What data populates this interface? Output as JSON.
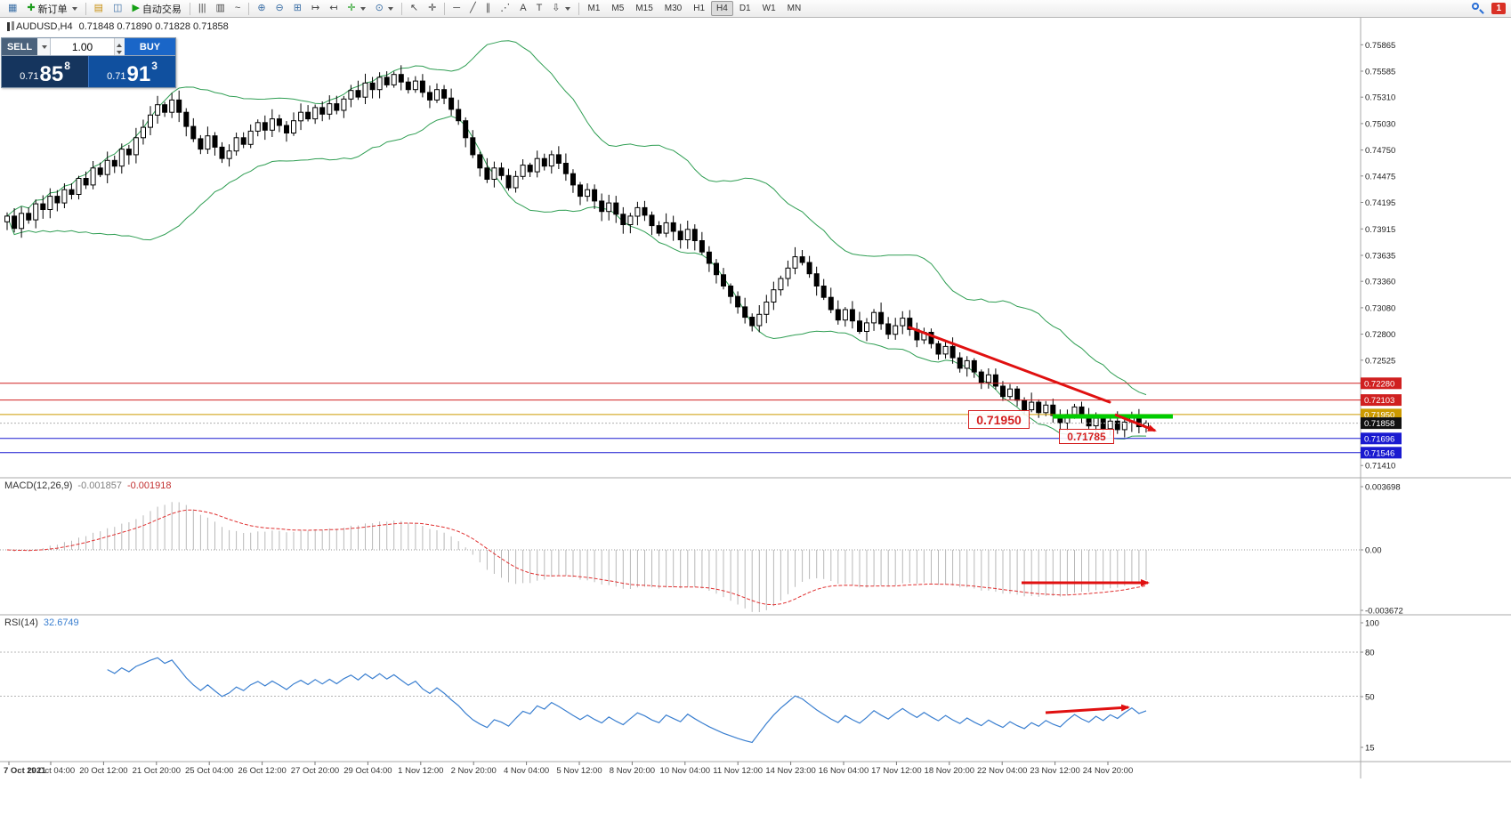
{
  "toolbar": {
    "items": [
      {
        "t": "btn",
        "name": "new-chart-button",
        "glyph": "▦",
        "color": "#3a6ea5"
      },
      {
        "t": "btn",
        "name": "new-order-button",
        "glyph": "✚",
        "color": "#1f9d1f",
        "label": "新订单",
        "caret": true
      },
      {
        "t": "sep"
      },
      {
        "t": "btn",
        "name": "profiles-button",
        "glyph": "▤",
        "color": "#c89010"
      },
      {
        "t": "btn",
        "name": "charts-grid-button",
        "glyph": "◫",
        "color": "#3a6ea5"
      },
      {
        "t": "btn",
        "name": "autotrade-button",
        "glyph": "▶",
        "color": "#14a014",
        "label": "自动交易"
      },
      {
        "t": "sep"
      },
      {
        "t": "btn",
        "name": "bar-chart-button",
        "glyph": "|||",
        "color": "#444"
      },
      {
        "t": "btn",
        "name": "candlestick-chart-button",
        "glyph": "▥",
        "color": "#444"
      },
      {
        "t": "btn",
        "name": "line-chart-button",
        "glyph": "~",
        "color": "#444"
      },
      {
        "t": "sep"
      },
      {
        "t": "btn",
        "name": "zoom-in-button",
        "glyph": "⊕",
        "color": "#3a6ea5"
      },
      {
        "t": "btn",
        "name": "zoom-out-button",
        "glyph": "⊖",
        "color": "#3a6ea5"
      },
      {
        "t": "btn",
        "name": "tile-windows-button",
        "glyph": "⊞",
        "color": "#3a6ea5"
      },
      {
        "t": "btn",
        "name": "auto-scroll-button",
        "glyph": "↦",
        "color": "#444"
      },
      {
        "t": "btn",
        "name": "chart-shift-button",
        "glyph": "↤",
        "color": "#444"
      },
      {
        "t": "btn",
        "name": "indicators-button",
        "glyph": "✛",
        "color": "#1f9d1f",
        "caret": true
      },
      {
        "t": "btn",
        "name": "periods-button",
        "glyph": "⊙",
        "color": "#3a6ea5",
        "caret": true
      },
      {
        "t": "sep"
      },
      {
        "t": "btn",
        "name": "cursor-button",
        "glyph": "↖",
        "color": "#444"
      },
      {
        "t": "btn",
        "name": "crosshair-button",
        "glyph": "✛",
        "color": "#444"
      },
      {
        "t": "sep"
      },
      {
        "t": "btn",
        "name": "horizontal-line-button",
        "glyph": "─",
        "color": "#444"
      },
      {
        "t": "btn",
        "name": "trendline-button",
        "glyph": "╱",
        "color": "#444"
      },
      {
        "t": "btn",
        "name": "equidistant-channel-button",
        "glyph": "∥",
        "color": "#444"
      },
      {
        "t": "btn",
        "name": "fibonacci-button",
        "glyph": "⋰",
        "color": "#444"
      },
      {
        "t": "btn",
        "name": "text-button",
        "glyph": "A",
        "color": "#444"
      },
      {
        "t": "btn",
        "name": "text-label-button",
        "glyph": "T",
        "color": "#444"
      },
      {
        "t": "btn",
        "name": "arrows-button",
        "glyph": "⇩",
        "color": "#444",
        "caret": true
      },
      {
        "t": "sep"
      },
      {
        "t": "tf",
        "name": "timeframe-m1",
        "label": "M1"
      },
      {
        "t": "tf",
        "name": "timeframe-m5",
        "label": "M5"
      },
      {
        "t": "tf",
        "name": "timeframe-m15",
        "label": "M15"
      },
      {
        "t": "tf",
        "name": "timeframe-m30",
        "label": "M30"
      },
      {
        "t": "tf",
        "name": "timeframe-h1",
        "label": "H1"
      },
      {
        "t": "tf",
        "name": "timeframe-h4",
        "label": "H4",
        "active": true
      },
      {
        "t": "tf",
        "name": "timeframe-d1",
        "label": "D1"
      },
      {
        "t": "tf",
        "name": "timeframe-w1",
        "label": "W1"
      },
      {
        "t": "tf",
        "name": "timeframe-mn",
        "label": "MN"
      },
      {
        "t": "spacer"
      },
      {
        "t": "search"
      },
      {
        "t": "badge",
        "name": "notification-badge",
        "label": "1"
      }
    ]
  },
  "symbol_header": {
    "symbol": "AUDUSD,H4",
    "ohlc": "0.71848 0.71890 0.71828 0.71858"
  },
  "trade_panel": {
    "sell_label": "SELL",
    "buy_label": "BUY",
    "volume": "1.00",
    "sell_price_prefix": "0.71",
    "sell_price_big": "85",
    "sell_price_sup": "8",
    "buy_price_prefix": "0.71",
    "buy_price_big": "91",
    "buy_price_sup": "3"
  },
  "chart_data": {
    "type": "candlestick",
    "symbol": "AUDUSD",
    "timeframe": "H4",
    "ohlc": {
      "open": "0.71848",
      "high": "0.71890",
      "low": "0.71828",
      "close": "0.71858"
    },
    "price_range": {
      "top": 0.7615,
      "bottom": 0.7128
    },
    "closes": [
      0.7405,
      0.7392,
      0.7408,
      0.7401,
      0.7418,
      0.7412,
      0.7426,
      0.7419,
      0.7433,
      0.7428,
      0.7445,
      0.7438,
      0.7456,
      0.7449,
      0.7464,
      0.7458,
      0.7476,
      0.747,
      0.7488,
      0.7499,
      0.7512,
      0.7523,
      0.7515,
      0.7528,
      0.7515,
      0.75,
      0.7487,
      0.7476,
      0.749,
      0.7478,
      0.7466,
      0.7474,
      0.7488,
      0.7481,
      0.7495,
      0.7504,
      0.7496,
      0.7508,
      0.7501,
      0.7493,
      0.7506,
      0.7515,
      0.7508,
      0.752,
      0.7513,
      0.7524,
      0.7517,
      0.7529,
      0.7538,
      0.7531,
      0.7546,
      0.7539,
      0.7552,
      0.7544,
      0.7555,
      0.7547,
      0.7539,
      0.7548,
      0.7536,
      0.7528,
      0.7539,
      0.753,
      0.7518,
      0.7506,
      0.7488,
      0.747,
      0.7456,
      0.7444,
      0.7456,
      0.7448,
      0.7435,
      0.7447,
      0.7459,
      0.7452,
      0.7466,
      0.7458,
      0.747,
      0.7461,
      0.745,
      0.7438,
      0.7426,
      0.7433,
      0.7421,
      0.741,
      0.7419,
      0.7407,
      0.7396,
      0.7405,
      0.7414,
      0.7406,
      0.7395,
      0.7387,
      0.7398,
      0.7389,
      0.738,
      0.7391,
      0.7379,
      0.7367,
      0.7355,
      0.7343,
      0.7331,
      0.732,
      0.7309,
      0.7298,
      0.7289,
      0.7301,
      0.7314,
      0.7327,
      0.7339,
      0.735,
      0.7362,
      0.7356,
      0.7344,
      0.7331,
      0.7319,
      0.7306,
      0.7295,
      0.7306,
      0.7294,
      0.7283,
      0.7292,
      0.7303,
      0.7291,
      0.728,
      0.7289,
      0.7297,
      0.7285,
      0.7274,
      0.7282,
      0.727,
      0.7259,
      0.7267,
      0.7255,
      0.7244,
      0.7252,
      0.724,
      0.7229,
      0.7237,
      0.7225,
      0.7214,
      0.7222,
      0.721,
      0.72,
      0.7208,
      0.7197,
      0.7205,
      0.7194,
      0.7186,
      0.7195,
      0.7203,
      0.7192,
      0.7183,
      0.7191,
      0.718,
      0.7188,
      0.7179,
      0.7187,
      0.7194,
      0.7182,
      0.71858
    ],
    "bollinger": {
      "period": 20,
      "deviations": 2
    },
    "price_axis_ticks": [
      "0.75865",
      "0.75585",
      "0.75310",
      "0.75030",
      "0.74750",
      "0.74475",
      "0.74195",
      "0.73915",
      "0.73635",
      "0.73360",
      "0.73080",
      "0.72800",
      "0.72525",
      "0.71410"
    ],
    "levels": [
      {
        "price": 0.7228,
        "label": "0.72280",
        "color": "#d02020"
      },
      {
        "price": 0.72103,
        "label": "0.72103",
        "color": "#d02020"
      },
      {
        "price": 0.7195,
        "label": "0.71950",
        "color": "#cc9a00"
      },
      {
        "price": 0.71696,
        "label": "0.71696",
        "color": "#1a1ad0"
      },
      {
        "price": 0.71546,
        "label": "0.71546",
        "color": "#1a1ad0"
      }
    ],
    "current_price": {
      "value": 0.71858,
      "label": "0.71858"
    },
    "annotations": {
      "label1": "0.71950",
      "label2": "0.71785"
    },
    "macd": {
      "title": "MACD(12,26,9)",
      "value_main": "-0.001857",
      "value_signal": "-0.001918",
      "fast": 12,
      "slow": 26,
      "signal": 9,
      "axis_ticks": [
        "0.003698",
        "0.00",
        "-0.003672"
      ]
    },
    "rsi": {
      "title": "RSI(14)",
      "value": "32.6749",
      "period": 14,
      "levels": [
        80,
        50
      ],
      "axis_ticks": [
        "100",
        "80",
        "50",
        "15"
      ]
    },
    "time_axis": [
      "7 Oct 2021",
      "19 Oct 04:00",
      "20 Oct 12:00",
      "21 Oct 20:00",
      "25 Oct 04:00",
      "26 Oct 12:00",
      "27 Oct 20:00",
      "29 Oct 04:00",
      "1 Nov 12:00",
      "2 Nov 20:00",
      "4 Nov 04:00",
      "5 Nov 12:00",
      "8 Nov 20:00",
      "10 Nov 04:00",
      "11 Nov 12:00",
      "14 Nov 23:00",
      "16 Nov 04:00",
      "17 Nov 12:00",
      "18 Nov 20:00",
      "22 Nov 04:00",
      "23 Nov 12:00",
      "24 Nov 20:00"
    ]
  },
  "colors": {
    "band": "#2f9e53",
    "level_red": "#d02020",
    "level_orange": "#cc9a00",
    "level_blue": "#1a1ad0",
    "annotation_red": "#e01010",
    "green_segment": "#00cc00",
    "macd_hist": "#b8b8b8",
    "macd_signal": "#e03030",
    "rsi_line": "#3a7fd0"
  }
}
